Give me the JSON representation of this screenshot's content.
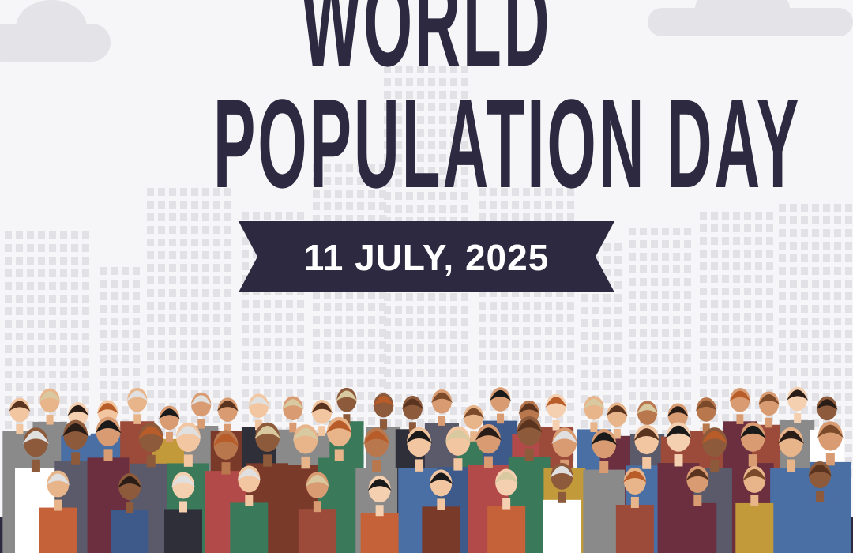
{
  "poster": {
    "title_line1": "WORLD",
    "title_line2": "POPULATION DAY",
    "date": "11 JULY, 2025"
  },
  "colors": {
    "title": "#2c2940",
    "banner": "#2c2940",
    "banner_text": "#ffffff",
    "background": "#f6f6f8",
    "buildings": "#e2e2e6"
  },
  "illustration": {
    "background_icon": "city-skyline",
    "foreground_icon": "crowd-of-people"
  }
}
